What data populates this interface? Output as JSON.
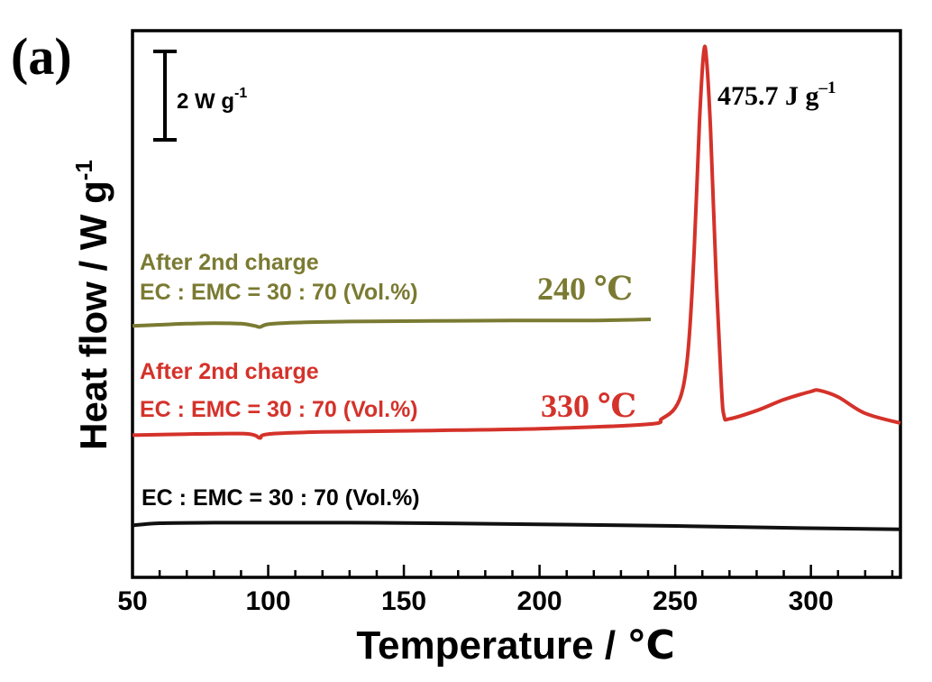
{
  "panel_label": "(a)",
  "chart_data": {
    "type": "line",
    "title": "",
    "xlabel": "Temperature /  ℃",
    "ylabel": "Heat flow / W g",
    "ylabel_sup": "-1",
    "xlim": [
      50,
      333
    ],
    "ylim": [
      0,
      10
    ],
    "x_ticks": [
      50,
      100,
      150,
      200,
      250,
      300
    ],
    "x_tick_labels": [
      "50",
      "100",
      "150",
      "200",
      "250",
      "300"
    ],
    "grid": false,
    "y_tick_labels": false,
    "scale_bar": {
      "label": "2 W g",
      "label_sup": "-1",
      "value": 2
    },
    "series": [
      {
        "name": "After 2nd charge EC : EMC = 30 : 70 (Vol.%) 240 ℃",
        "label_lines": [
          "After 2nd charge",
          "EC : EMC = 30 : 70 (Vol.%)"
        ],
        "temp_label": "240 ℃",
        "color": "#7a7a32",
        "x": [
          50,
          60,
          70,
          80,
          90,
          95,
          97,
          100,
          110,
          130,
          160,
          190,
          220,
          241
        ],
        "y": [
          4.6,
          4.62,
          4.64,
          4.65,
          4.64,
          4.6,
          4.58,
          4.63,
          4.66,
          4.68,
          4.69,
          4.7,
          4.7,
          4.72
        ]
      },
      {
        "name": "After 2nd charge EC : EMC = 30 : 70 (Vol.%) 330 ℃",
        "label_lines": [
          "After 2nd charge",
          "EC : EMC = 30 : 70 (Vol.%)"
        ],
        "temp_label": "330 ℃",
        "color": "#d4322a",
        "annotation": "475.7 J g",
        "annotation_sup": "–1",
        "x": [
          50,
          70,
          90,
          95,
          97,
          100,
          120,
          150,
          200,
          240,
          245,
          250,
          253,
          255,
          257,
          259,
          260.5,
          261.5,
          263,
          265,
          267,
          268,
          270,
          280,
          290,
          300,
          303,
          310,
          320,
          333
        ],
        "y": [
          2.6,
          2.62,
          2.63,
          2.6,
          2.55,
          2.62,
          2.66,
          2.68,
          2.72,
          2.8,
          2.9,
          3.1,
          3.5,
          4.3,
          6.0,
          8.4,
          9.6,
          9.5,
          8.2,
          5.6,
          3.5,
          2.95,
          2.9,
          3.05,
          3.25,
          3.4,
          3.42,
          3.3,
          3.0,
          2.82
        ]
      },
      {
        "name": "EC : EMC = 30 : 70 (Vol.%)",
        "label_lines": [
          "EC : EMC = 30 : 70 (Vol.%)"
        ],
        "color": "#111111",
        "x": [
          50,
          60,
          80,
          100,
          130,
          160,
          200,
          250,
          300,
          333
        ],
        "y": [
          0.95,
          0.99,
          1.0,
          1.0,
          1.0,
          0.99,
          0.97,
          0.94,
          0.9,
          0.88
        ]
      }
    ]
  }
}
